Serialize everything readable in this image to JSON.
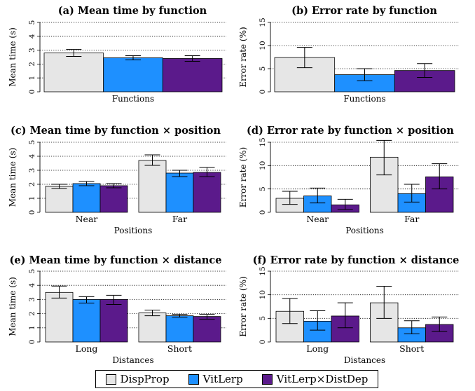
{
  "legend": [
    {
      "name": "DispProp",
      "color": "#e6e6e6"
    },
    {
      "name": "VitLerp",
      "color": "#1e90ff"
    },
    {
      "name": "VitLerp×DistDep",
      "color": "#5b1a8b"
    }
  ],
  "chart_data": [
    {
      "id": "a",
      "type": "bar",
      "title": "(a) Mean time by function",
      "xlabel": "Functions",
      "ylabel": "Mean time (s)",
      "ylim": [
        0,
        5
      ],
      "yticks": [
        "0",
        "1",
        "2",
        "3",
        "4",
        "5"
      ],
      "grid": true,
      "categories": [
        ""
      ],
      "series": [
        {
          "name": "DispProp",
          "values": [
            2.8
          ],
          "err_low": [
            2.55
          ],
          "err_high": [
            3.05
          ]
        },
        {
          "name": "VitLerp",
          "values": [
            2.45
          ],
          "err_low": [
            2.3
          ],
          "err_high": [
            2.6
          ]
        },
        {
          "name": "VitLerp×DistDep",
          "values": [
            2.4
          ],
          "err_low": [
            2.2
          ],
          "err_high": [
            2.6
          ]
        }
      ]
    },
    {
      "id": "b",
      "type": "bar",
      "title": "(b) Error rate by function",
      "xlabel": "Functions",
      "ylabel": "Error rate (%)",
      "ylim": [
        0,
        15
      ],
      "yticks": [
        "0",
        "5",
        "10",
        "15"
      ],
      "grid": true,
      "categories": [
        ""
      ],
      "series": [
        {
          "name": "DispProp",
          "values": [
            7.4
          ],
          "err_low": [
            5.2
          ],
          "err_high": [
            9.6
          ]
        },
        {
          "name": "VitLerp",
          "values": [
            3.7
          ],
          "err_low": [
            2.4
          ],
          "err_high": [
            5.0
          ]
        },
        {
          "name": "VitLerp×DistDep",
          "values": [
            4.6
          ],
          "err_low": [
            3.1
          ],
          "err_high": [
            6.1
          ]
        }
      ]
    },
    {
      "id": "c",
      "type": "bar",
      "title": "(c) Mean time by function × position",
      "xlabel": "Positions",
      "ylabel": "Mean time (s)",
      "ylim": [
        0,
        5
      ],
      "yticks": [
        "0",
        "1",
        "2",
        "3",
        "4",
        "5"
      ],
      "grid": true,
      "categories": [
        "Near",
        "Far"
      ],
      "series": [
        {
          "name": "DispProp",
          "values": [
            1.85,
            3.7
          ],
          "err_low": [
            1.7,
            3.35
          ],
          "err_high": [
            2.0,
            4.1
          ]
        },
        {
          "name": "VitLerp",
          "values": [
            2.05,
            2.8
          ],
          "err_low": [
            1.9,
            2.55
          ],
          "err_high": [
            2.2,
            3.0
          ]
        },
        {
          "name": "VitLerp×DistDep",
          "values": [
            1.9,
            2.85
          ],
          "err_low": [
            1.75,
            2.55
          ],
          "err_high": [
            2.05,
            3.2
          ]
        }
      ]
    },
    {
      "id": "d",
      "type": "bar",
      "title": "(d) Error rate by function × position",
      "xlabel": "Positions",
      "ylabel": "Error rate (%)",
      "ylim": [
        0,
        15
      ],
      "yticks": [
        "0",
        "5",
        "10",
        "15"
      ],
      "grid": true,
      "categories": [
        "Near",
        "Far"
      ],
      "series": [
        {
          "name": "DispProp",
          "values": [
            3.0,
            11.8
          ],
          "err_low": [
            1.7,
            8.0
          ],
          "err_high": [
            4.5,
            15.4
          ]
        },
        {
          "name": "VitLerp",
          "values": [
            3.5,
            4.0
          ],
          "err_low": [
            2.0,
            2.2
          ],
          "err_high": [
            5.2,
            6.0
          ]
        },
        {
          "name": "VitLerp×DistDep",
          "values": [
            1.6,
            7.6
          ],
          "err_low": [
            0.6,
            5.0
          ],
          "err_high": [
            2.8,
            10.4
          ]
        }
      ]
    },
    {
      "id": "e",
      "type": "bar",
      "title": "(e) Mean time by function × distance",
      "xlabel": "Distances",
      "ylabel": "Mean time (s)",
      "ylim": [
        0,
        5
      ],
      "yticks": [
        "0",
        "1",
        "2",
        "3",
        "4",
        "5"
      ],
      "grid": true,
      "categories": [
        "Long",
        "Short"
      ],
      "series": [
        {
          "name": "DispProp",
          "values": [
            3.5,
            2.05
          ],
          "err_low": [
            3.1,
            1.85
          ],
          "err_high": [
            3.95,
            2.25
          ]
        },
        {
          "name": "VitLerp",
          "values": [
            3.0,
            1.85
          ],
          "err_low": [
            2.75,
            1.75
          ],
          "err_high": [
            3.2,
            1.95
          ]
        },
        {
          "name": "VitLerp×DistDep",
          "values": [
            3.0,
            1.8
          ],
          "err_low": [
            2.65,
            1.6
          ],
          "err_high": [
            3.3,
            1.95
          ]
        }
      ]
    },
    {
      "id": "f",
      "type": "bar",
      "title": "(f) Error rate by function × distance",
      "xlabel": "Distances",
      "ylabel": "Error rate (%)",
      "ylim": [
        0,
        15
      ],
      "yticks": [
        "0",
        "5",
        "10",
        "15"
      ],
      "grid": true,
      "categories": [
        "Long",
        "Short"
      ],
      "series": [
        {
          "name": "DispProp",
          "values": [
            6.5,
            8.3
          ],
          "err_low": [
            3.9,
            5.0
          ],
          "err_high": [
            9.2,
            11.8
          ]
        },
        {
          "name": "VitLerp",
          "values": [
            4.4,
            3.0
          ],
          "err_low": [
            2.5,
            1.7
          ],
          "err_high": [
            6.6,
            4.5
          ]
        },
        {
          "name": "VitLerp×DistDep",
          "values": [
            5.5,
            3.7
          ],
          "err_low": [
            3.0,
            2.2
          ],
          "err_high": [
            8.3,
            5.3
          ]
        }
      ]
    }
  ]
}
